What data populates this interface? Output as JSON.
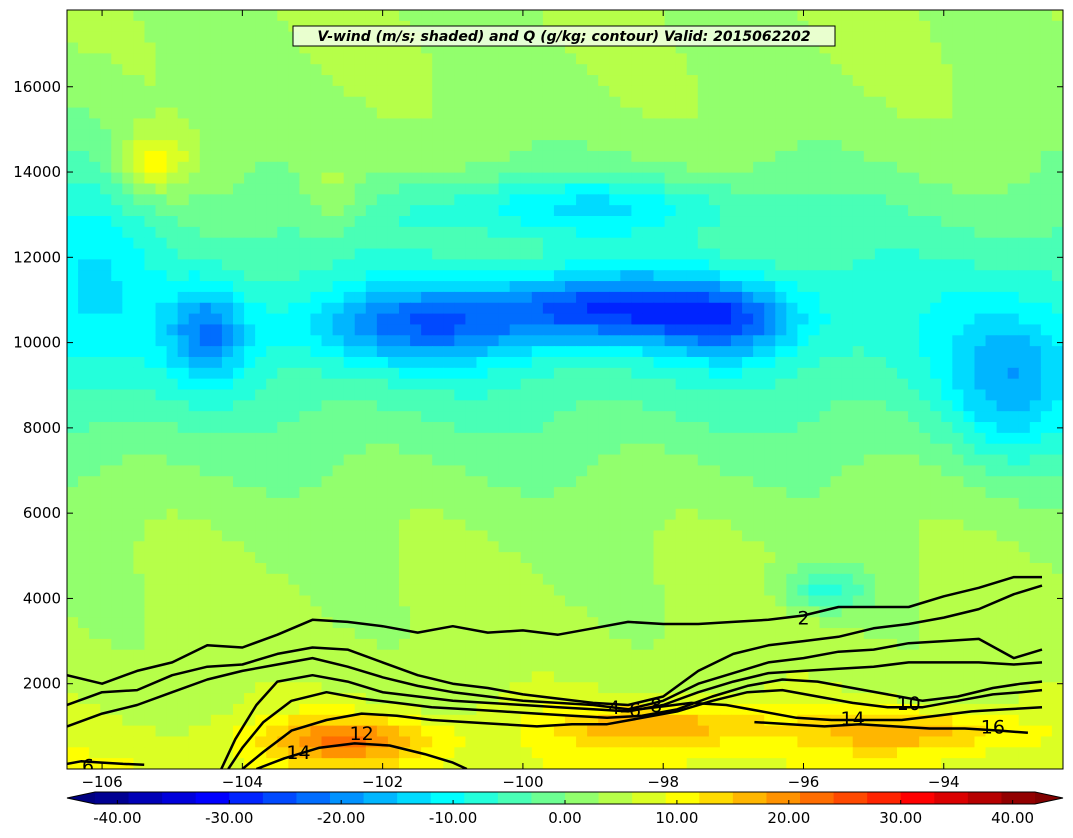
{
  "chart_data": {
    "type": "heatmap",
    "title": "V-wind (m/s; shaded) and Q (g/kg; contour) Valid: 2015062202",
    "xlabel": "",
    "ylabel": "",
    "x_range": [
      -106.5,
      -92.3
    ],
    "y_range": [
      0,
      17800
    ],
    "x_ticks": [
      -106,
      -104,
      -102,
      -100,
      -98,
      -96,
      -94
    ],
    "x_tick_labels": [
      "−106",
      "−104",
      "−102",
      "−100",
      "−98",
      "−96",
      "−94"
    ],
    "y_ticks": [
      2000,
      4000,
      6000,
      8000,
      10000,
      12000,
      14000,
      16000
    ],
    "y_tick_labels": [
      "2000",
      "4000",
      "6000",
      "8000",
      "10000",
      "12000",
      "14000",
      "16000"
    ],
    "colorbar": {
      "min": -42,
      "max": 42,
      "step": 3,
      "extend": "both",
      "tick_values": [
        -40,
        -30,
        -20,
        -10,
        0,
        10,
        20,
        30,
        40
      ],
      "tick_labels": [
        "-40.00",
        "-30.00",
        "-20.00",
        "-10.00",
        "0.00",
        "10.00",
        "20.00",
        "30.00",
        "40.00"
      ]
    },
    "shaded_features": [
      {
        "lon": -106.2,
        "hgt": 12000,
        "v": -6,
        "rx": 0.9,
        "ry": 3500
      },
      {
        "lon": -104.5,
        "hgt": 10200,
        "v": -14,
        "rx": 0.55,
        "ry": 1100
      },
      {
        "lon": -101.5,
        "hgt": 10400,
        "v": -15,
        "rx": 1.6,
        "ry": 900
      },
      {
        "lon": -98.8,
        "hgt": 10800,
        "v": -20,
        "rx": 1.7,
        "ry": 800
      },
      {
        "lon": -97.0,
        "hgt": 10500,
        "v": -14,
        "rx": 1.0,
        "ry": 900
      },
      {
        "lon": -93.0,
        "hgt": 9000,
        "v": -12,
        "rx": 1.0,
        "ry": 1800
      },
      {
        "lon": -99.2,
        "hgt": 13200,
        "v": -10,
        "rx": 2.5,
        "ry": 700
      },
      {
        "lon": -95.7,
        "hgt": 4200,
        "v": -10,
        "rx": 0.6,
        "ry": 500
      },
      {
        "lon": -105.3,
        "hgt": 14200,
        "v": 10,
        "rx": 0.55,
        "ry": 700
      },
      {
        "lon": -102.7,
        "hgt": 13500,
        "v": 6,
        "rx": 0.5,
        "ry": 1000
      },
      {
        "lon": -102.5,
        "hgt": 700,
        "v": 14,
        "rx": 1.3,
        "ry": 550
      },
      {
        "lon": -98.0,
        "hgt": 1000,
        "v": 12,
        "rx": 1.5,
        "ry": 550
      },
      {
        "lon": -94.5,
        "hgt": 900,
        "v": 11,
        "rx": 1.5,
        "ry": 500
      }
    ],
    "q_contours": [
      {
        "level": 2,
        "label": "2",
        "label_lon": -96.0,
        "label_hgt": 3550,
        "points": [
          [
            -106.5,
            2200
          ],
          [
            -106.0,
            2000
          ],
          [
            -105.5,
            2300
          ],
          [
            -105.0,
            2500
          ],
          [
            -104.5,
            2900
          ],
          [
            -104.0,
            2850
          ],
          [
            -103.5,
            3150
          ],
          [
            -103.0,
            3500
          ],
          [
            -102.5,
            3450
          ],
          [
            -102.0,
            3350
          ],
          [
            -101.5,
            3200
          ],
          [
            -101.0,
            3350
          ],
          [
            -100.5,
            3200
          ],
          [
            -100.0,
            3250
          ],
          [
            -99.5,
            3150
          ],
          [
            -99.0,
            3300
          ],
          [
            -98.5,
            3450
          ],
          [
            -98.0,
            3400
          ],
          [
            -97.5,
            3400
          ],
          [
            -97.0,
            3450
          ],
          [
            -96.5,
            3500
          ],
          [
            -96.0,
            3600
          ],
          [
            -95.5,
            3800
          ],
          [
            -95.0,
            3800
          ],
          [
            -94.5,
            3800
          ],
          [
            -94.0,
            4050
          ],
          [
            -93.5,
            4250
          ],
          [
            -93.0,
            4500
          ],
          [
            -92.6,
            4500
          ]
        ]
      },
      {
        "level": 4,
        "label": "4",
        "label_lon": -98.7,
        "label_hgt": 1450,
        "points": [
          [
            -106.5,
            1500
          ],
          [
            -106.0,
            1800
          ],
          [
            -105.5,
            1850
          ],
          [
            -105.0,
            2200
          ],
          [
            -104.5,
            2400
          ],
          [
            -104.0,
            2450
          ],
          [
            -103.5,
            2700
          ],
          [
            -103.0,
            2850
          ],
          [
            -102.5,
            2800
          ],
          [
            -102.0,
            2500
          ],
          [
            -101.5,
            2200
          ],
          [
            -101.0,
            2000
          ],
          [
            -100.5,
            1900
          ],
          [
            -100.0,
            1750
          ],
          [
            -99.5,
            1650
          ],
          [
            -99.0,
            1550
          ],
          [
            -98.5,
            1500
          ],
          [
            -98.0,
            1700
          ],
          [
            -97.5,
            2300
          ],
          [
            -97.0,
            2700
          ],
          [
            -96.5,
            2900
          ],
          [
            -96.0,
            3000
          ],
          [
            -95.5,
            3100
          ],
          [
            -95.0,
            3300
          ],
          [
            -94.5,
            3400
          ],
          [
            -94.0,
            3550
          ],
          [
            -93.5,
            3750
          ],
          [
            -93.0,
            4100
          ],
          [
            -92.6,
            4300
          ]
        ]
      },
      {
        "level": 6,
        "label": "6",
        "label_lon": -98.4,
        "label_hgt": 1400,
        "points": [
          [
            -106.5,
            1000
          ],
          [
            -106.0,
            1300
          ],
          [
            -105.5,
            1500
          ],
          [
            -105.0,
            1800
          ],
          [
            -104.5,
            2100
          ],
          [
            -104.0,
            2300
          ],
          [
            -103.5,
            2450
          ],
          [
            -103.0,
            2600
          ],
          [
            -102.5,
            2400
          ],
          [
            -102.0,
            2150
          ],
          [
            -101.5,
            1950
          ],
          [
            -101.0,
            1800
          ],
          [
            -100.5,
            1700
          ],
          [
            -100.0,
            1600
          ],
          [
            -99.5,
            1550
          ],
          [
            -99.0,
            1500
          ],
          [
            -98.5,
            1400
          ],
          [
            -98.0,
            1600
          ],
          [
            -97.5,
            2000
          ],
          [
            -97.0,
            2250
          ],
          [
            -96.5,
            2500
          ],
          [
            -96.0,
            2600
          ],
          [
            -95.5,
            2750
          ],
          [
            -95.0,
            2800
          ],
          [
            -94.5,
            2950
          ],
          [
            -94.0,
            3000
          ],
          [
            -93.5,
            3050
          ],
          [
            -93.0,
            2600
          ],
          [
            -92.6,
            2800
          ]
        ]
      },
      {
        "level": 8,
        "label": "8",
        "label_lon": -98.1,
        "label_hgt": 1500,
        "points": [
          [
            -104.3,
            0
          ],
          [
            -104.1,
            700
          ],
          [
            -103.8,
            1500
          ],
          [
            -103.5,
            2050
          ],
          [
            -103.0,
            2200
          ],
          [
            -102.5,
            2050
          ],
          [
            -102.0,
            1800
          ],
          [
            -101.5,
            1700
          ],
          [
            -101.0,
            1600
          ],
          [
            -100.5,
            1550
          ],
          [
            -100.0,
            1500
          ],
          [
            -99.5,
            1450
          ],
          [
            -99.0,
            1400
          ],
          [
            -98.5,
            1350
          ],
          [
            -98.0,
            1500
          ],
          [
            -97.5,
            1800
          ],
          [
            -97.0,
            2050
          ],
          [
            -96.5,
            2250
          ],
          [
            -96.0,
            2300
          ],
          [
            -95.5,
            2350
          ],
          [
            -95.0,
            2400
          ],
          [
            -94.5,
            2500
          ],
          [
            -94.0,
            2500
          ],
          [
            -93.5,
            2500
          ],
          [
            -93.0,
            2450
          ],
          [
            -92.6,
            2500
          ]
        ]
      },
      {
        "level": 10,
        "label": "10",
        "label_lon": -94.5,
        "label_hgt": 1550,
        "points": [
          [
            -104.2,
            0
          ],
          [
            -104.0,
            500
          ],
          [
            -103.7,
            1100
          ],
          [
            -103.3,
            1600
          ],
          [
            -102.8,
            1800
          ],
          [
            -102.3,
            1650
          ],
          [
            -101.8,
            1550
          ],
          [
            -101.3,
            1450
          ],
          [
            -100.8,
            1400
          ],
          [
            -100.3,
            1350
          ],
          [
            -99.8,
            1300
          ],
          [
            -99.3,
            1250
          ],
          [
            -98.8,
            1200
          ],
          [
            -98.3,
            1250
          ],
          [
            -97.8,
            1400
          ],
          [
            -97.3,
            1700
          ],
          [
            -96.8,
            1950
          ],
          [
            -96.3,
            2100
          ],
          [
            -95.8,
            2050
          ],
          [
            -95.3,
            1900
          ],
          [
            -94.8,
            1750
          ],
          [
            -94.3,
            1600
          ],
          [
            -93.8,
            1700
          ],
          [
            -93.3,
            1900
          ],
          [
            -92.9,
            2000
          ],
          [
            -92.6,
            2050
          ]
        ]
      },
      {
        "level": 12,
        "label": "12",
        "label_lon": -102.3,
        "label_hgt": 850,
        "points": [
          [
            -104.0,
            0
          ],
          [
            -103.7,
            400
          ],
          [
            -103.3,
            900
          ],
          [
            -102.8,
            1150
          ],
          [
            -102.3,
            1300
          ],
          [
            -101.8,
            1250
          ],
          [
            -101.3,
            1150
          ],
          [
            -100.8,
            1100
          ],
          [
            -100.3,
            1050
          ],
          [
            -99.8,
            1000
          ],
          [
            -99.3,
            1050
          ],
          [
            -98.8,
            1050
          ],
          [
            -98.3,
            1200
          ],
          [
            -97.8,
            1350
          ],
          [
            -97.3,
            1600
          ],
          [
            -96.8,
            1800
          ],
          [
            -96.3,
            1850
          ],
          [
            -95.8,
            1700
          ],
          [
            -95.3,
            1550
          ],
          [
            -94.8,
            1450
          ],
          [
            -94.3,
            1450
          ],
          [
            -93.8,
            1600
          ],
          [
            -93.3,
            1750
          ],
          [
            -92.9,
            1800
          ],
          [
            -92.6,
            1850
          ]
        ]
      },
      {
        "level": 14,
        "label": "14",
        "label_lon": -103.2,
        "label_hgt": 400,
        "points": [
          [
            -103.8,
            0
          ],
          [
            -103.4,
            250
          ],
          [
            -102.9,
            500
          ],
          [
            -102.4,
            600
          ],
          [
            -101.9,
            550
          ],
          [
            -101.4,
            350
          ],
          [
            -101.0,
            150
          ],
          [
            -100.8,
            0
          ]
        ]
      },
      {
        "level": 14,
        "label": "14",
        "label_lon": -95.3,
        "label_hgt": 1200,
        "points": [
          [
            -98.6,
            1350
          ],
          [
            -98.1,
            1450
          ],
          [
            -97.6,
            1550
          ],
          [
            -97.1,
            1500
          ],
          [
            -96.6,
            1350
          ],
          [
            -96.1,
            1200
          ],
          [
            -95.6,
            1150
          ],
          [
            -95.1,
            1150
          ],
          [
            -94.6,
            1150
          ],
          [
            -94.1,
            1250
          ],
          [
            -93.6,
            1350
          ],
          [
            -93.1,
            1400
          ],
          [
            -92.6,
            1450
          ]
        ]
      },
      {
        "level": 16,
        "label": "16",
        "label_lon": -93.3,
        "label_hgt": 1000,
        "points": [
          [
            -96.7,
            1100
          ],
          [
            -96.2,
            1050
          ],
          [
            -95.7,
            1000
          ],
          [
            -95.2,
            1050
          ],
          [
            -94.7,
            1000
          ],
          [
            -94.2,
            950
          ],
          [
            -93.7,
            950
          ],
          [
            -93.2,
            900
          ],
          [
            -92.8,
            850
          ]
        ]
      },
      {
        "level": 6,
        "label": "6",
        "label_lon": -106.2,
        "label_hgt": 80,
        "points": [
          [
            -106.5,
            120
          ],
          [
            -106.3,
            180
          ],
          [
            -106.0,
            150
          ],
          [
            -105.7,
            120
          ],
          [
            -105.4,
            100
          ]
        ]
      }
    ]
  }
}
